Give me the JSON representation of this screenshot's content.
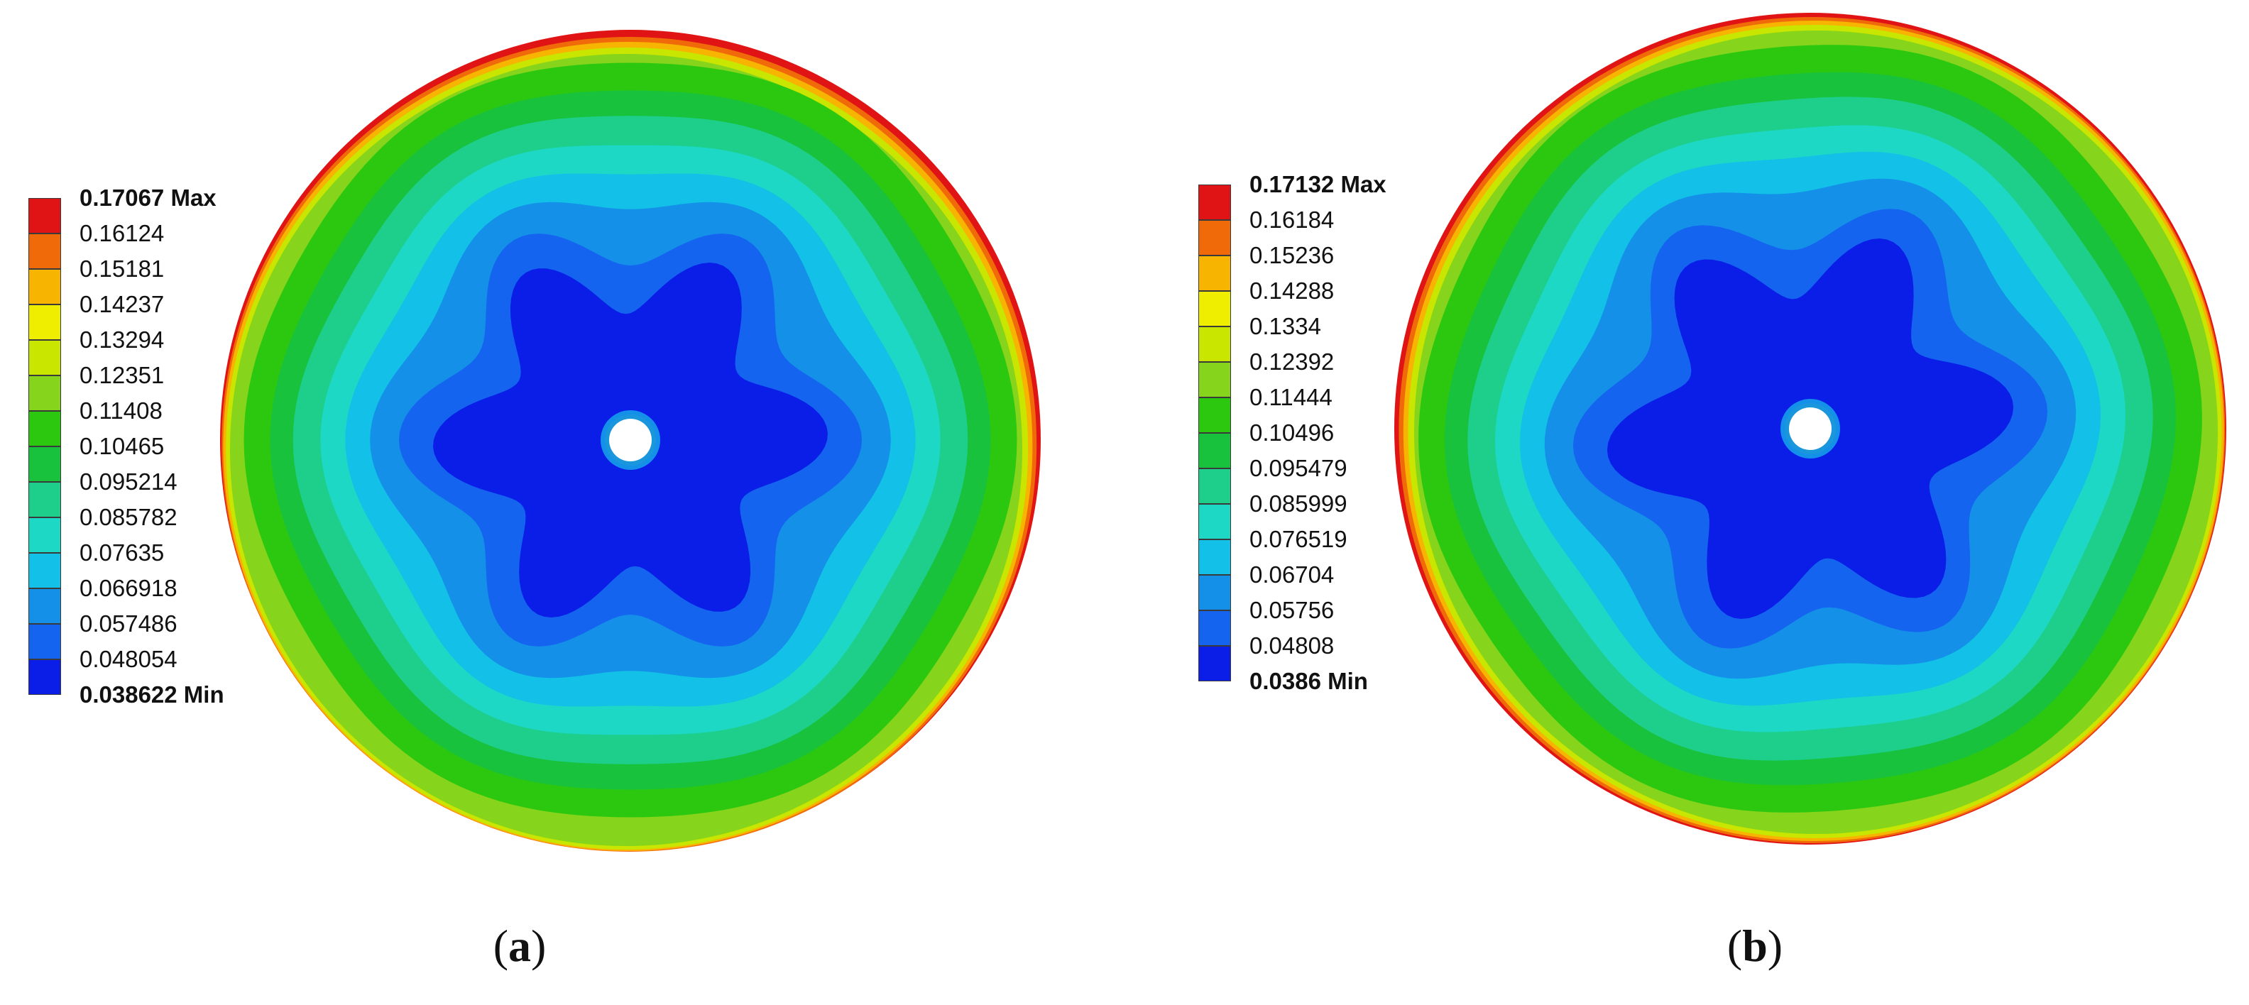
{
  "panels": [
    {
      "id": "a",
      "caption_prefix": "(",
      "caption_letter": "a",
      "caption_suffix": ")",
      "legend": {
        "max_label": "0.17067 Max",
        "labels": [
          "0.16124",
          "0.15181",
          "0.14237",
          "0.13294",
          "0.12351",
          "0.11408",
          "0.10465",
          "0.095214",
          "0.085782",
          "0.07635",
          "0.066918",
          "0.057486",
          "0.048054"
        ],
        "min_label": "0.038622 Min"
      }
    },
    {
      "id": "b",
      "caption_prefix": "(",
      "caption_letter": "b",
      "caption_suffix": ")",
      "legend": {
        "max_label": "0.17132 Max",
        "labels": [
          "0.16184",
          "0.15236",
          "0.14288",
          "0.1334",
          "0.12392",
          "0.11444",
          "0.10496",
          "0.095479",
          "0.085999",
          "0.076519",
          "0.06704",
          "0.05756",
          "0.04808"
        ],
        "min_label": "0.0386 Min"
      }
    }
  ],
  "colors": {
    "scale": [
      "#e01414",
      "#f06a0a",
      "#f7b400",
      "#f0ee00",
      "#c8e600",
      "#86d41c",
      "#2cc810",
      "#18c23c",
      "#1ecf8c",
      "#1cd8c4",
      "#12c0e8",
      "#1490e8",
      "#1464f0",
      "#0a1ee8"
    ],
    "center_hole": "#ffffff",
    "hole_ring": "#1a96dc"
  }
}
